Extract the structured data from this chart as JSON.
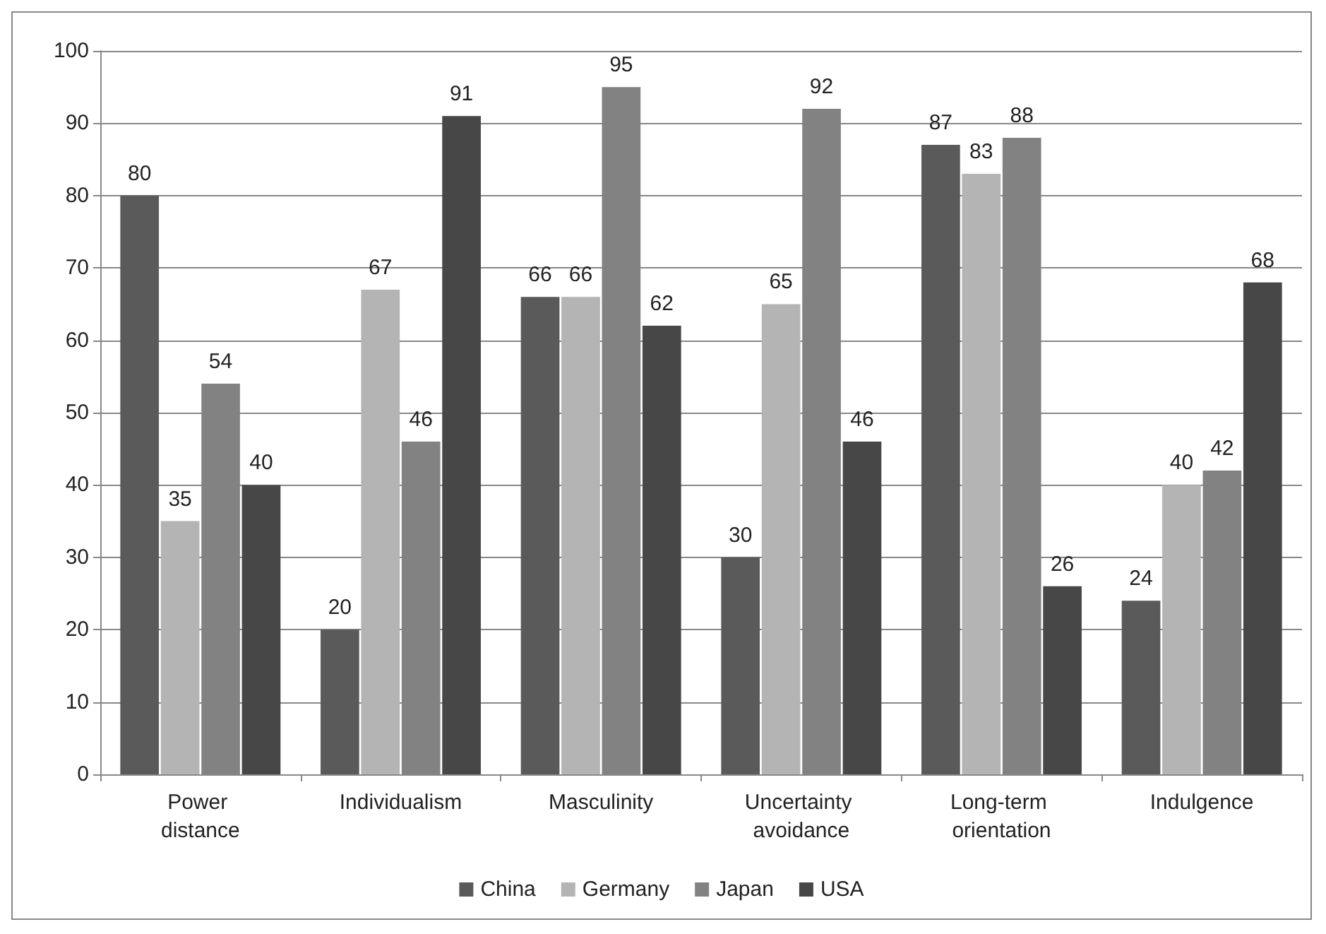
{
  "chart_data": {
    "type": "bar",
    "categories": [
      "Power distance",
      "Individualism",
      "Masculinity",
      "Uncertainty avoidance",
      "Long-term orientation",
      "Indulgence"
    ],
    "series": [
      {
        "name": "China",
        "color": "#5a5a5a",
        "values": [
          80,
          20,
          66,
          30,
          87,
          24
        ]
      },
      {
        "name": "Germany",
        "color": "#b4b4b4",
        "values": [
          35,
          67,
          66,
          65,
          83,
          40
        ]
      },
      {
        "name": "Japan",
        "color": "#828282",
        "values": [
          54,
          46,
          95,
          92,
          88,
          42
        ]
      },
      {
        "name": "USA",
        "color": "#474747",
        "values": [
          40,
          91,
          62,
          46,
          26,
          68
        ]
      }
    ],
    "ylim": [
      0,
      100
    ],
    "yticks": [
      0,
      10,
      20,
      30,
      40,
      50,
      60,
      70,
      80,
      90,
      100
    ],
    "grid": "y",
    "legend": "bottom",
    "data_labels": true
  }
}
